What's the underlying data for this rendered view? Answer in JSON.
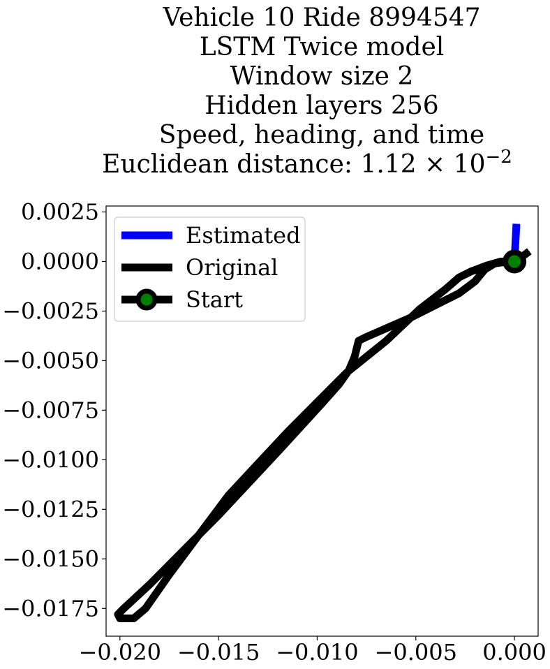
{
  "chart_data": {
    "type": "line",
    "title_lines": [
      "Vehicle 10 Ride 8994547",
      "LSTM Twice model",
      "Window size 2",
      "Hidden layers 256",
      "Speed, heading, and time",
      "Euclidean distance: 1.12 × 10"
    ],
    "title_exponent": "−2",
    "xlabel": "",
    "ylabel": "",
    "xlim": [
      -0.0207,
      0.0012
    ],
    "ylim": [
      -0.0189,
      0.0028
    ],
    "x_ticks": [
      {
        "value": -0.02,
        "label": "−0.020"
      },
      {
        "value": -0.015,
        "label": "−0.015"
      },
      {
        "value": -0.01,
        "label": "−0.010"
      },
      {
        "value": -0.005,
        "label": "−0.005"
      },
      {
        "value": 0.0,
        "label": "0.000"
      }
    ],
    "y_ticks": [
      {
        "value": 0.0025,
        "label": "0.0025"
      },
      {
        "value": 0.0,
        "label": "0.0000"
      },
      {
        "value": -0.0025,
        "label": "−0.0025"
      },
      {
        "value": -0.005,
        "label": "−0.0050"
      },
      {
        "value": -0.0075,
        "label": "−0.0075"
      },
      {
        "value": -0.01,
        "label": "−0.0100"
      },
      {
        "value": -0.0125,
        "label": "−0.0125"
      },
      {
        "value": -0.015,
        "label": "−0.0150"
      },
      {
        "value": -0.0175,
        "label": "−0.0175"
      }
    ],
    "grid": false,
    "legend_position": "top-left",
    "series": [
      {
        "name": "Estimated",
        "color": "#0000ff",
        "x": [
          0.0,
          0.0001
        ],
        "y": [
          0.0,
          0.0019
        ]
      },
      {
        "name": "Original",
        "color": "#000000",
        "x": [
          0.0006,
          0.0002,
          -0.0003,
          -0.001,
          -0.0015,
          -0.002,
          -0.0028,
          -0.004,
          -0.0052,
          -0.0068,
          -0.0075,
          -0.0079,
          -0.0081,
          -0.0084,
          -0.0089,
          -0.0097,
          -0.0108,
          -0.012,
          -0.0135,
          -0.015,
          -0.0168,
          -0.0185,
          -0.0198,
          -0.0201,
          -0.02,
          -0.0193,
          -0.0187,
          -0.0175,
          -0.016,
          -0.0145,
          -0.013,
          -0.0115,
          -0.01,
          -0.0085,
          -0.0065,
          -0.0048,
          -0.0035,
          -0.0028,
          -0.0022,
          -0.0014,
          -0.0007,
          0.0
        ],
        "y": [
          0.0004,
          0.0001,
          0.0,
          -0.0001,
          -0.0004,
          -0.001,
          -0.0016,
          -0.0022,
          -0.0028,
          -0.0035,
          -0.0038,
          -0.004,
          -0.0048,
          -0.0055,
          -0.0062,
          -0.0071,
          -0.0083,
          -0.0096,
          -0.0112,
          -0.0128,
          -0.0146,
          -0.0163,
          -0.0175,
          -0.0178,
          -0.018,
          -0.018,
          -0.0175,
          -0.0158,
          -0.0138,
          -0.0118,
          -0.0102,
          -0.0086,
          -0.0071,
          -0.0056,
          -0.004,
          -0.0024,
          -0.0014,
          -0.0008,
          -0.0005,
          -0.0002,
          0.0,
          0.0
        ]
      }
    ],
    "start_marker": {
      "name": "Start",
      "x": 0.0,
      "y": 0.0,
      "face_color": "#008000",
      "edge_color": "#000000"
    }
  }
}
